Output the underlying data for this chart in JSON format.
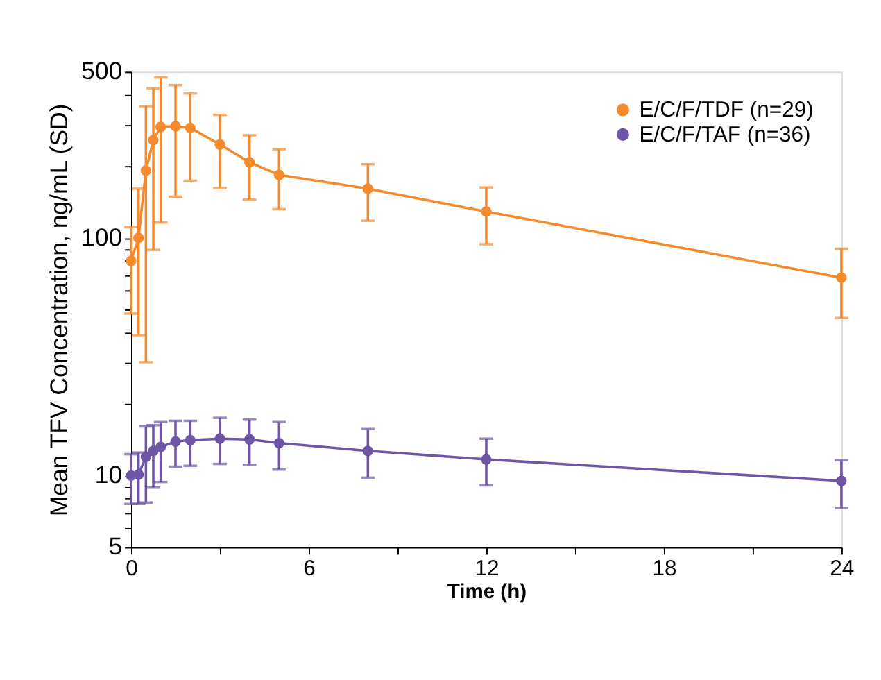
{
  "chart_data": {
    "type": "line",
    "xlabel": "Time (h)",
    "ylabel": "Mean TFV Concentration, ng/mL (SD)",
    "x": [
      0,
      0.25,
      0.5,
      0.75,
      1,
      1.5,
      2,
      3,
      4,
      5,
      8,
      12,
      24
    ],
    "series": [
      {
        "name": "E/C/F/TDF (n=29)",
        "color": "#f58a2c",
        "values": [
          80,
          100,
          192,
          258,
          293,
          295,
          290,
          247,
          208,
          184,
          161,
          129,
          68
        ],
        "errors": [
          [
            48,
            111
          ],
          [
            39,
            161
          ],
          [
            30,
            358
          ],
          [
            89,
            426
          ],
          [
            116,
            473
          ],
          [
            149,
            439
          ],
          [
            174,
            405
          ],
          [
            162,
            329
          ],
          [
            145,
            270
          ],
          [
            132,
            236
          ],
          [
            118,
            204
          ],
          [
            94,
            163
          ],
          [
            46,
            90
          ]
        ]
      },
      {
        "name": "E/C/F/TAF (n=36)",
        "color": "#6f55a5",
        "values": [
          10.0,
          10.1,
          12.0,
          12.7,
          13.2,
          13.9,
          14.1,
          14.3,
          14.2,
          13.7,
          12.7,
          11.7,
          9.5
        ],
        "errors": [
          [
            7.6,
            12.3
          ],
          [
            7.6,
            12.5
          ],
          [
            7.7,
            16.1
          ],
          [
            8.9,
            16.3
          ],
          [
            9.4,
            16.8
          ],
          [
            10.9,
            17.0
          ],
          [
            11.0,
            17.0
          ],
          [
            11.2,
            17.5
          ],
          [
            11.1,
            17.2
          ],
          [
            10.6,
            16.8
          ],
          [
            9.8,
            15.7
          ],
          [
            9.1,
            14.3
          ],
          [
            7.3,
            11.6
          ]
        ]
      }
    ],
    "log": true,
    "xlim": [
      0,
      24
    ],
    "ylim": [
      5,
      500
    ],
    "xticks": [
      0,
      {
        "value": 3,
        "label": null
      },
      6,
      {
        "value": 9,
        "label": null
      },
      12,
      {
        "value": 15,
        "label": null
      },
      18,
      {
        "value": 21,
        "label": null
      },
      24
    ],
    "yticks": [
      5,
      {
        "value": 6,
        "label": null
      },
      {
        "value": 7,
        "label": null
      },
      {
        "value": 8,
        "label": null
      },
      {
        "value": 9,
        "label": null
      },
      10,
      {
        "value": 20,
        "label": null
      },
      {
        "value": 30,
        "label": null
      },
      {
        "value": 40,
        "label": null
      },
      {
        "value": 50,
        "label": null
      },
      {
        "value": 60,
        "label": null
      },
      {
        "value": 70,
        "label": null
      },
      {
        "value": 80,
        "label": null
      },
      {
        "value": 90,
        "label": null
      },
      100,
      {
        "value": 200,
        "label": null
      },
      {
        "value": 300,
        "label": null
      },
      {
        "value": 400,
        "label": null
      },
      500
    ],
    "grid": false,
    "legend": "top right",
    "marker": "circle",
    "line_style": "solid"
  }
}
